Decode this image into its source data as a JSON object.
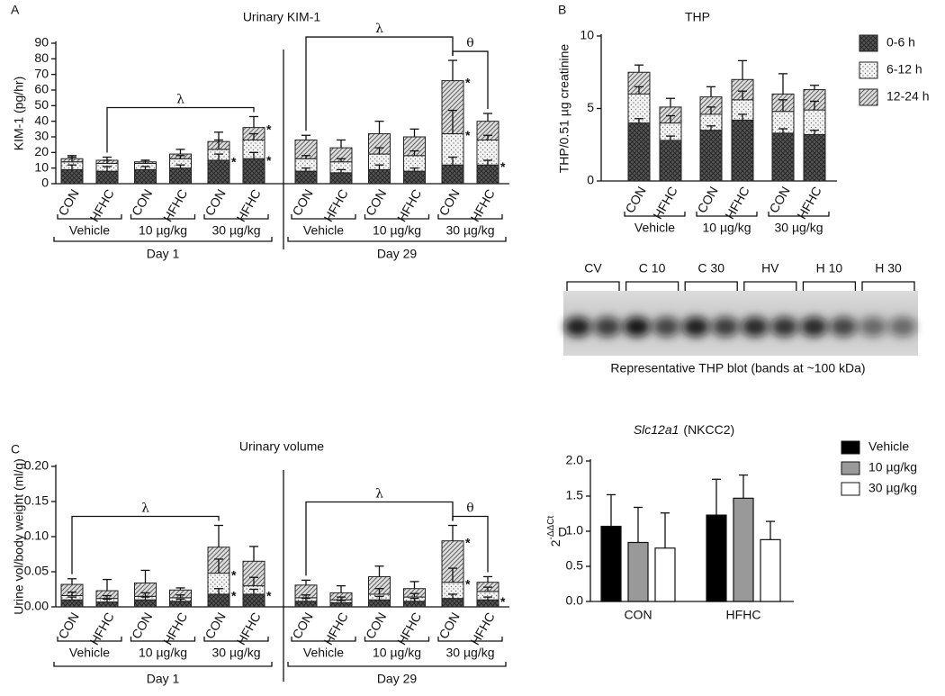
{
  "chart_data": [
    {
      "panel": "A",
      "type": "stacked-bar",
      "title": "Urinary KIM-1",
      "y_label": "KIM-1 (pg/hr)",
      "categories": [
        "CON",
        "HFHC",
        "CON",
        "HFHC",
        "CON",
        "HFHC",
        "CON",
        "HFHC",
        "CON",
        "HFHC",
        "CON",
        "HFHC"
      ],
      "groups": [
        "Vehicle",
        "10 µg/kg",
        "30 µg/kg",
        "Vehicle",
        "10 µg/kg",
        "30 µg/kg"
      ],
      "supergroups": [
        "Day 1",
        "Day 29"
      ],
      "series": [
        {
          "pattern": "crosshatch",
          "color": "#555555",
          "values": [
            9,
            8,
            9,
            10,
            15,
            16,
            8,
            7,
            9,
            8,
            12,
            12
          ],
          "errors": [
            3,
            3,
            2,
            2,
            4,
            4,
            2,
            2,
            3,
            2,
            5,
            3
          ]
        },
        {
          "pattern": "dots",
          "color": "#777777",
          "values": [
            5,
            5,
            4,
            6,
            7,
            12,
            8,
            7,
            10,
            10,
            20,
            16
          ],
          "errors": [
            3,
            2,
            2,
            2,
            6,
            4,
            2,
            2,
            4,
            3,
            15,
            3
          ]
        },
        {
          "pattern": "hatch",
          "color": "#666666",
          "values": [
            2,
            2,
            1,
            3,
            5,
            8,
            12,
            9,
            13,
            12,
            34,
            12
          ],
          "errors": [
            2,
            2,
            1,
            3,
            6,
            7,
            3,
            5,
            8,
            5,
            13,
            5
          ]
        }
      ],
      "ylim": [
        0,
        90
      ],
      "yticks": [
        0,
        10,
        20,
        30,
        40,
        50,
        60,
        70,
        80,
        90
      ],
      "annotations": [
        {
          "text": "λ",
          "from": 1,
          "to": 5
        },
        {
          "text": "θ",
          "from": 10,
          "to": 11
        },
        {
          "text": "λ",
          "from": 6,
          "to": 10
        }
      ],
      "stars": [
        {
          "text": "*",
          "bar": 4,
          "series": 0
        },
        {
          "text": "*",
          "bar": 5,
          "series": 0
        },
        {
          "text": "*",
          "bar": 5,
          "series": 2
        },
        {
          "text": "*",
          "bar": 10,
          "series": 1
        },
        {
          "text": "*",
          "bar": 10,
          "series": 2
        },
        {
          "text": "*",
          "bar": 11,
          "series": 0
        }
      ]
    },
    {
      "panel": "B",
      "type": "stacked-bar",
      "title": "THP",
      "y_label": "THP/0.51 µg creatinine",
      "categories": [
        "CON",
        "HFHC",
        "CON",
        "HFHC",
        "CON",
        "HFHC"
      ],
      "groups": [
        "Vehicle",
        "10 µg/kg",
        "30 µg/kg"
      ],
      "series": [
        {
          "name": "0-6 h",
          "pattern": "crosshatch",
          "color": "#555555",
          "values": [
            4,
            2.8,
            3.5,
            4.2,
            3.3,
            3.2
          ],
          "errors": [
            0.3,
            0.3,
            0.3,
            0.4,
            0.3,
            0.3
          ]
        },
        {
          "name": "6-12 h",
          "pattern": "dots",
          "color": "#777777",
          "values": [
            2,
            1.2,
            1.1,
            1.4,
            1.5,
            1.7
          ],
          "errors": [
            0.5,
            0.5,
            0.5,
            0.6,
            0.8,
            0.6
          ]
        },
        {
          "name": "12-24 h",
          "pattern": "hatch",
          "color": "#666666",
          "values": [
            1.5,
            1.1,
            1.2,
            1.4,
            1.2,
            1.4
          ],
          "errors": [
            0.5,
            0.6,
            0.7,
            1.3,
            1.4,
            0.3
          ]
        }
      ],
      "ylim": [
        0,
        10
      ],
      "yticks": [
        0,
        5,
        10
      ],
      "legend": "right"
    },
    {
      "panel": "C",
      "type": "stacked-bar",
      "title": "Urinary volume",
      "y_label": "Urine vol/body weight (ml/g)",
      "categories": [
        "CON",
        "HFHC",
        "CON",
        "HFHC",
        "CON",
        "HFHC",
        "CON",
        "HFHC",
        "CON",
        "HFHC",
        "CON",
        "HFHC"
      ],
      "groups": [
        "Vehicle",
        "10 µg/kg",
        "30 µg/kg",
        "Vehicle",
        "10 µg/kg",
        "30 µg/kg"
      ],
      "supergroups": [
        "Day 1",
        "Day 29"
      ],
      "series": [
        {
          "pattern": "crosshatch",
          "color": "#555555",
          "values": [
            0.01,
            0.007,
            0.01,
            0.008,
            0.018,
            0.018,
            0.008,
            0.006,
            0.01,
            0.008,
            0.012,
            0.01
          ],
          "errors": [
            0.004,
            0.004,
            0.004,
            0.003,
            0.008,
            0.007,
            0.004,
            0.003,
            0.005,
            0.004,
            0.006,
            0.004
          ]
        },
        {
          "pattern": "dots",
          "color": "#777777",
          "values": [
            0.006,
            0.005,
            0.005,
            0.005,
            0.03,
            0.012,
            0.005,
            0.004,
            0.008,
            0.006,
            0.023,
            0.012
          ],
          "errors": [
            0.005,
            0.004,
            0.005,
            0.004,
            0.02,
            0.012,
            0.004,
            0.004,
            0.008,
            0.005,
            0.02,
            0.006
          ]
        },
        {
          "pattern": "hatch",
          "color": "#666666",
          "values": [
            0.016,
            0.011,
            0.019,
            0.011,
            0.037,
            0.035,
            0.018,
            0.01,
            0.025,
            0.012,
            0.059,
            0.013
          ],
          "errors": [
            0.008,
            0.016,
            0.018,
            0.003,
            0.031,
            0.021,
            0.007,
            0.01,
            0.015,
            0.01,
            0.022,
            0.008
          ]
        }
      ],
      "ylim": [
        0,
        0.2
      ],
      "yticks": [
        {
          "value": 0,
          "label": "0.00"
        },
        {
          "value": 0.05,
          "label": "0.05"
        },
        {
          "value": 0.1,
          "label": "0.10"
        },
        {
          "value": 0.15,
          "label": "0.15"
        },
        {
          "value": 0.2,
          "label": "0.20"
        }
      ],
      "annotations": [
        {
          "text": "λ",
          "from": 0,
          "to": 4
        },
        {
          "text": "θ",
          "from": 10,
          "to": 11
        },
        {
          "text": "λ",
          "from": 6,
          "to": 10
        }
      ],
      "stars": [
        {
          "text": "*",
          "bar": 4,
          "series": 0
        },
        {
          "text": "*",
          "bar": 4,
          "series": 1
        },
        {
          "text": "*",
          "bar": 5,
          "series": 0
        },
        {
          "text": "*",
          "bar": 10,
          "series": 1
        },
        {
          "text": "*",
          "bar": 10,
          "series": 2
        },
        {
          "text": "*",
          "bar": 11,
          "series": 0
        }
      ]
    },
    {
      "panel": "D",
      "type": "bar",
      "title_italic": "Slc12a1",
      "title": "(NKCC2)",
      "y_label": "2",
      "y_label_sup": "-ΔΔCt",
      "categories": [
        "CON",
        "HFHC"
      ],
      "series": [
        {
          "name": "Vehicle",
          "color": "#000000",
          "values": [
            1.07,
            1.23
          ],
          "errors": [
            0.45,
            0.51
          ]
        },
        {
          "name": "10 µg/kg",
          "color": "#999999",
          "values": [
            0.84,
            1.47
          ],
          "errors": [
            0.5,
            0.33
          ]
        },
        {
          "name": "30 µg/kg",
          "color": "#ffffff",
          "values": [
            0.76,
            0.88
          ],
          "errors": [
            0.5,
            0.26
          ]
        }
      ],
      "ylim": [
        0,
        2
      ],
      "yticks": [
        {
          "value": 0,
          "label": "0.0"
        },
        {
          "value": 0.5,
          "label": "0.5"
        },
        {
          "value": 1,
          "label": "1.0"
        },
        {
          "value": 1.5,
          "label": "1.5"
        },
        {
          "value": 2,
          "label": "2.0"
        }
      ],
      "legend": "right"
    }
  ],
  "blot": {
    "panel": "",
    "lanes": [
      "CV",
      "C 10",
      "C 30",
      "HV",
      "H 10",
      "H 30"
    ],
    "caption": "Representative THP blot (bands at ~100 kDa)"
  }
}
